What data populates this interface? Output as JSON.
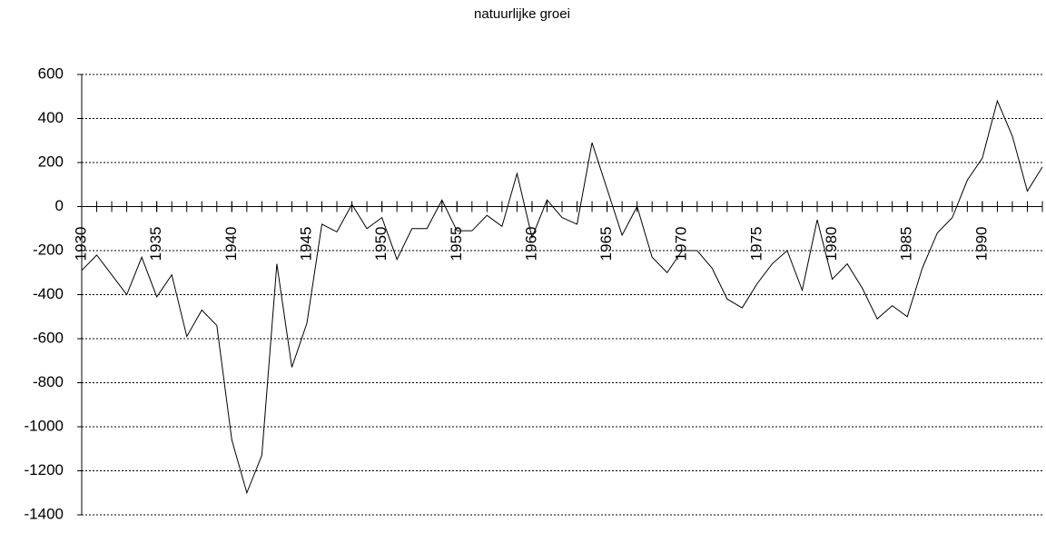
{
  "chart_data": {
    "type": "line",
    "title": "natuurlijke groei",
    "x": [
      1930,
      1931,
      1932,
      1933,
      1934,
      1935,
      1936,
      1937,
      1938,
      1939,
      1940,
      1941,
      1942,
      1943,
      1944,
      1945,
      1946,
      1947,
      1948,
      1949,
      1950,
      1951,
      1952,
      1953,
      1954,
      1955,
      1956,
      1957,
      1958,
      1959,
      1960,
      1961,
      1962,
      1963,
      1964,
      1965,
      1966,
      1967,
      1968,
      1969,
      1970,
      1971,
      1972,
      1973,
      1974,
      1975,
      1976,
      1977,
      1978,
      1979,
      1980,
      1981,
      1982,
      1983,
      1984,
      1985,
      1986,
      1987,
      1988,
      1989,
      1990,
      1991,
      1992,
      1993,
      1994
    ],
    "values": [
      -290,
      -220,
      -310,
      -400,
      -230,
      -410,
      -310,
      -590,
      -470,
      -540,
      -1060,
      -1300,
      -1130,
      -260,
      -730,
      -530,
      -80,
      -115,
      10,
      -100,
      -50,
      -240,
      -100,
      -100,
      30,
      -110,
      -110,
      -40,
      -90,
      150,
      -140,
      30,
      -50,
      -80,
      290,
      80,
      -130,
      0,
      -230,
      -300,
      -200,
      -200,
      -280,
      -420,
      -460,
      -350,
      -260,
      -200,
      -380,
      -60,
      -330,
      -260,
      -370,
      -510,
      -450,
      -500,
      -280,
      -120,
      -50,
      120,
      220,
      480,
      320,
      70,
      180
    ],
    "color": "#000000",
    "xlim": [
      1930,
      1994
    ],
    "xticks": [
      1930,
      1935,
      1940,
      1945,
      1950,
      1955,
      1960,
      1965,
      1970,
      1975,
      1980,
      1985,
      1990
    ],
    "ylim": [
      -1400,
      600
    ],
    "yticks": [
      -1400,
      -1200,
      -1000,
      -800,
      -600,
      -400,
      -200,
      0,
      200,
      400,
      600
    ],
    "grid": true
  }
}
